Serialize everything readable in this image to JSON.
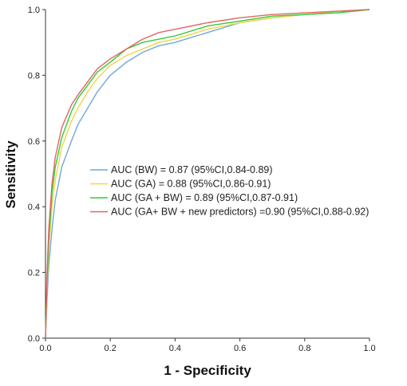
{
  "chart_data": {
    "type": "line",
    "title": "",
    "xlabel": "1 - Specificity",
    "ylabel": "Sensitivity",
    "xlim": [
      0,
      1
    ],
    "ylim": [
      0,
      1
    ],
    "x_ticks": [
      "0.0",
      "0.2",
      "0.4",
      "0.6",
      "0.8",
      "1.0"
    ],
    "y_ticks": [
      "0.0",
      "0.2",
      "0.4",
      "0.6",
      "0.8",
      "1.0"
    ],
    "grid": false,
    "legend_position": "center-right",
    "series": [
      {
        "name": "AUC (BW) = 0.87 (95%CI,0.84-0.89)",
        "color": "#6fa8dc",
        "points": [
          [
            0,
            0
          ],
          [
            0.005,
            0.12
          ],
          [
            0.01,
            0.22
          ],
          [
            0.02,
            0.33
          ],
          [
            0.03,
            0.42
          ],
          [
            0.05,
            0.52
          ],
          [
            0.08,
            0.6
          ],
          [
            0.1,
            0.65
          ],
          [
            0.13,
            0.7
          ],
          [
            0.16,
            0.75
          ],
          [
            0.2,
            0.8
          ],
          [
            0.25,
            0.84
          ],
          [
            0.3,
            0.87
          ],
          [
            0.35,
            0.89
          ],
          [
            0.4,
            0.9
          ],
          [
            0.5,
            0.93
          ],
          [
            0.6,
            0.96
          ],
          [
            0.7,
            0.975
          ],
          [
            0.8,
            0.985
          ],
          [
            0.9,
            0.99
          ],
          [
            1,
            1
          ]
        ]
      },
      {
        "name": "AUC (GA) = 0.88 (95%CI,0.86-0.91)",
        "color": "#f2d544",
        "points": [
          [
            0,
            0
          ],
          [
            0.005,
            0.15
          ],
          [
            0.01,
            0.27
          ],
          [
            0.02,
            0.4
          ],
          [
            0.03,
            0.48
          ],
          [
            0.05,
            0.58
          ],
          [
            0.08,
            0.66
          ],
          [
            0.1,
            0.7
          ],
          [
            0.13,
            0.75
          ],
          [
            0.16,
            0.79
          ],
          [
            0.2,
            0.83
          ],
          [
            0.25,
            0.86
          ],
          [
            0.3,
            0.88
          ],
          [
            0.35,
            0.9
          ],
          [
            0.4,
            0.91
          ],
          [
            0.5,
            0.94
          ],
          [
            0.6,
            0.96
          ],
          [
            0.7,
            0.975
          ],
          [
            0.8,
            0.985
          ],
          [
            0.9,
            0.995
          ],
          [
            1,
            1
          ]
        ]
      },
      {
        "name": "AUC (GA + BW) = 0.89 (95%CI,0.87-0.91)",
        "color": "#33cc33",
        "points": [
          [
            0,
            0
          ],
          [
            0.005,
            0.18
          ],
          [
            0.01,
            0.3
          ],
          [
            0.02,
            0.44
          ],
          [
            0.03,
            0.52
          ],
          [
            0.05,
            0.61
          ],
          [
            0.08,
            0.69
          ],
          [
            0.1,
            0.73
          ],
          [
            0.13,
            0.77
          ],
          [
            0.16,
            0.81
          ],
          [
            0.2,
            0.84
          ],
          [
            0.25,
            0.88
          ],
          [
            0.3,
            0.9
          ],
          [
            0.35,
            0.91
          ],
          [
            0.4,
            0.92
          ],
          [
            0.5,
            0.95
          ],
          [
            0.6,
            0.965
          ],
          [
            0.7,
            0.98
          ],
          [
            0.8,
            0.985
          ],
          [
            0.9,
            0.99
          ],
          [
            1,
            1
          ]
        ]
      },
      {
        "name": "AUC (GA+ BW + new predictors) =0.90 (95%CI,0.88-0.92)",
        "color": "#e06666",
        "points": [
          [
            0,
            0
          ],
          [
            0.005,
            0.2
          ],
          [
            0.01,
            0.33
          ],
          [
            0.02,
            0.47
          ],
          [
            0.03,
            0.55
          ],
          [
            0.05,
            0.64
          ],
          [
            0.08,
            0.71
          ],
          [
            0.1,
            0.74
          ],
          [
            0.13,
            0.78
          ],
          [
            0.16,
            0.82
          ],
          [
            0.2,
            0.85
          ],
          [
            0.25,
            0.88
          ],
          [
            0.3,
            0.91
          ],
          [
            0.35,
            0.93
          ],
          [
            0.4,
            0.94
          ],
          [
            0.5,
            0.96
          ],
          [
            0.6,
            0.975
          ],
          [
            0.7,
            0.985
          ],
          [
            0.8,
            0.99
          ],
          [
            0.9,
            0.995
          ],
          [
            1,
            1
          ]
        ]
      }
    ]
  }
}
